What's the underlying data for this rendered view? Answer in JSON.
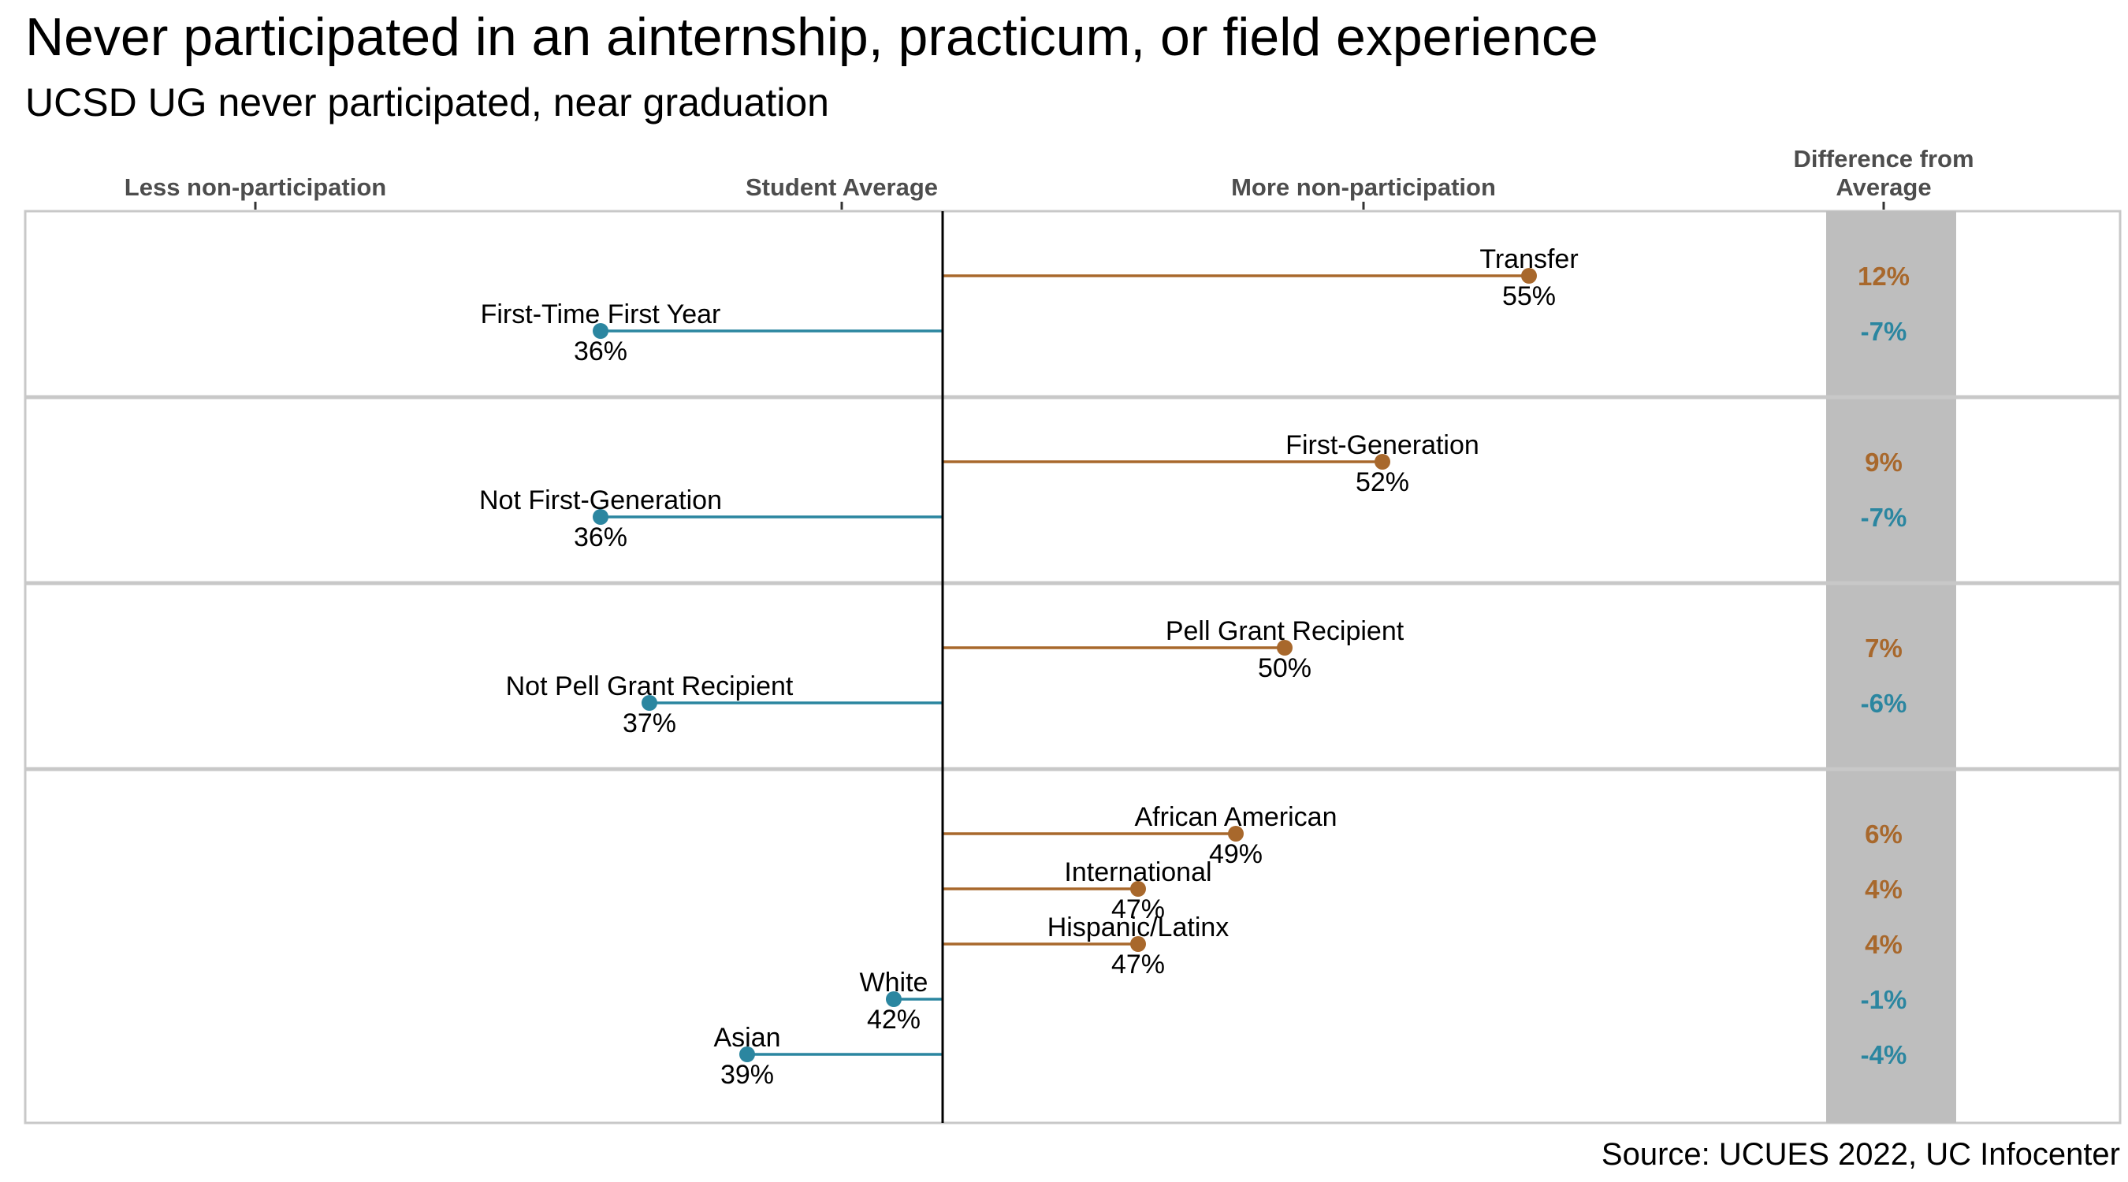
{
  "title": "Never participated in an ainternship, practicum, or field experience",
  "subtitle": "UCSD UG never participated, near graduation",
  "source": "Source: UCUES 2022, UC Infocenter",
  "colors": {
    "above": "#a8682c",
    "below": "#2b86a0",
    "panel_border": "#c8c8c8",
    "diff_band": "#bebebe",
    "avg_line": "#000000"
  },
  "axis_headers": {
    "less": "Less non-participation",
    "average": "Student Average",
    "more": "More non-participation",
    "difference": [
      "Difference from",
      "Average"
    ]
  },
  "chart_data": {
    "type": "dumbbell",
    "xlim": [
      25,
      65
    ],
    "student_average": 43,
    "groups": [
      {
        "items": [
          {
            "name": "Transfer",
            "value": 55,
            "value_label": "55%",
            "diff": "12%",
            "direction": "above"
          },
          {
            "name": "First-Time First Year",
            "value": 36,
            "value_label": "36%",
            "diff": "-7%",
            "direction": "below"
          }
        ]
      },
      {
        "items": [
          {
            "name": "First-Generation",
            "value": 52,
            "value_label": "52%",
            "diff": "9%",
            "direction": "above"
          },
          {
            "name": "Not First-Generation",
            "value": 36,
            "value_label": "36%",
            "diff": "-7%",
            "direction": "below"
          }
        ]
      },
      {
        "items": [
          {
            "name": "Pell Grant Recipient",
            "value": 50,
            "value_label": "50%",
            "diff": "7%",
            "direction": "above"
          },
          {
            "name": "Not Pell Grant Recipient",
            "value": 37,
            "value_label": "37%",
            "diff": "-6%",
            "direction": "below"
          }
        ]
      },
      {
        "items": [
          {
            "name": "African American",
            "value": 49,
            "value_label": "49%",
            "diff": "6%",
            "direction": "above"
          },
          {
            "name": "International",
            "value": 47,
            "value_label": "47%",
            "diff": "4%",
            "direction": "above"
          },
          {
            "name": "Hispanic/Latinx",
            "value": 47,
            "value_label": "47%",
            "diff": "4%",
            "direction": "above"
          },
          {
            "name": "White",
            "value": 42,
            "value_label": "42%",
            "diff": "-1%",
            "direction": "below"
          },
          {
            "name": "Asian",
            "value": 39,
            "value_label": "39%",
            "diff": "-4%",
            "direction": "below"
          }
        ]
      }
    ]
  }
}
